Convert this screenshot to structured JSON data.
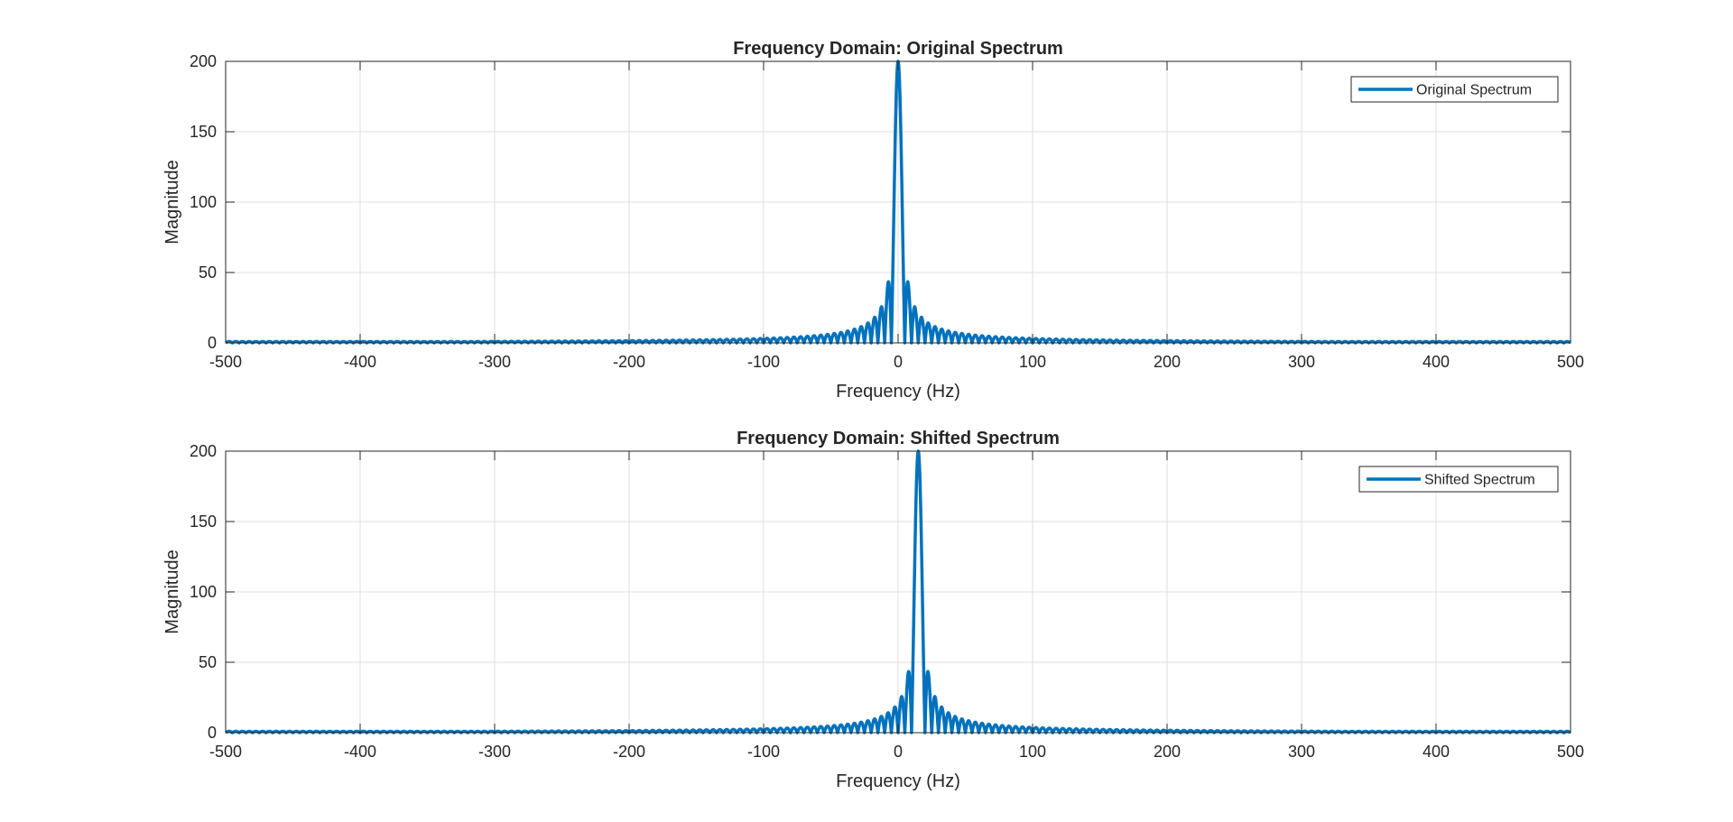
{
  "figure": {
    "background": "#ffffff"
  },
  "chart_data": [
    {
      "type": "line",
      "title": "Frequency Domain: Original Spectrum",
      "xlabel": "Frequency (Hz)",
      "ylabel": "Magnitude",
      "xlim": [
        -500,
        500
      ],
      "ylim": [
        0,
        200
      ],
      "xticks": [
        -500,
        -400,
        -300,
        -200,
        -100,
        0,
        100,
        200,
        300,
        400,
        500
      ],
      "yticks": [
        0,
        50,
        100,
        150,
        200
      ],
      "xtick_labels": [
        "-500",
        "-400",
        "-300",
        "-200",
        "-100",
        "0",
        "100",
        "200",
        "300",
        "400",
        "500"
      ],
      "ytick_labels": [
        "0",
        "50",
        "100",
        "150",
        "200"
      ],
      "grid": true,
      "legend_position": "top-right",
      "series": [
        {
          "name": "Original Spectrum",
          "color": "#0072BD",
          "center_hz": 0,
          "lobe_spacing_hz": 5,
          "main_lobe_peak": 200,
          "side_lobe_peaks": [
            {
              "x": -7.5,
              "y": 43
            },
            {
              "x": 7.5,
              "y": 43
            },
            {
              "x": -12.5,
              "y": 25
            },
            {
              "x": 12.5,
              "y": 25
            },
            {
              "x": -17.5,
              "y": 18
            },
            {
              "x": 17.5,
              "y": 18
            }
          ],
          "tail_magnitude": 1
        }
      ]
    },
    {
      "type": "line",
      "title": "Frequency Domain: Shifted Spectrum",
      "xlabel": "Frequency (Hz)",
      "ylabel": "Magnitude",
      "xlim": [
        -500,
        500
      ],
      "ylim": [
        0,
        200
      ],
      "xticks": [
        -500,
        -400,
        -300,
        -200,
        -100,
        0,
        100,
        200,
        300,
        400,
        500
      ],
      "yticks": [
        0,
        50,
        100,
        150,
        200
      ],
      "xtick_labels": [
        "-500",
        "-400",
        "-300",
        "-200",
        "-100",
        "0",
        "100",
        "200",
        "300",
        "400",
        "500"
      ],
      "ytick_labels": [
        "0",
        "50",
        "100",
        "150",
        "200"
      ],
      "grid": true,
      "legend_position": "top-right",
      "series": [
        {
          "name": "Shifted Spectrum",
          "color": "#0072BD",
          "center_hz": 15,
          "lobe_spacing_hz": 5,
          "main_lobe_peak": 200,
          "side_lobe_peaks": [
            {
              "x": 7.5,
              "y": 43
            },
            {
              "x": 22.5,
              "y": 43
            },
            {
              "x": 2.5,
              "y": 25
            },
            {
              "x": 27.5,
              "y": 25
            },
            {
              "x": -2.5,
              "y": 18
            },
            {
              "x": 32.5,
              "y": 18
            }
          ],
          "tail_magnitude": 1
        }
      ]
    }
  ]
}
